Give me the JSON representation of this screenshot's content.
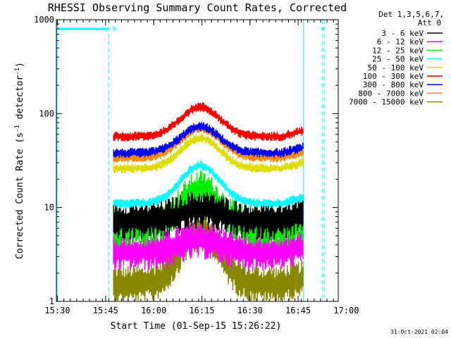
{
  "chart_data": {
    "type": "line",
    "title": "RHESSI Observing Summary Count Rates, Corrected",
    "xlabel": "Start Time (01-Sep-15 15:26:22)",
    "ylabel_main": "Corrected Count Rate (s",
    "ylabel_sup1": "-1",
    "ylabel_mid": " detector",
    "ylabel_sup2": "-1",
    "ylabel_end": ")",
    "y_scale": "log",
    "ylim": [
      1,
      1000
    ],
    "xlim_minutes": [
      15.17,
      103.0
    ],
    "x_ticks": [
      {
        "label": "15:30",
        "minute": 15.5
      },
      {
        "label": "15:45",
        "minute": 30.5
      },
      {
        "label": "16:00",
        "minute": 45.5
      },
      {
        "label": "16:15",
        "minute": 60.5
      },
      {
        "label": "16:30",
        "minute": 75.5
      },
      {
        "label": "16:45",
        "minute": 90.5
      },
      {
        "label": "17:00",
        "minute": 105.5
      }
    ],
    "y_ticks": [
      {
        "label": "1",
        "value": 1
      },
      {
        "label": "10",
        "value": 10
      },
      {
        "label": "100",
        "value": 100
      },
      {
        "label": "1000",
        "value": 1000
      }
    ],
    "legend_header": [
      "Det 1,3,5,6,7,",
      "Att 0"
    ],
    "legend_placement": "right",
    "night_marker": "N",
    "data_start_minute": 33,
    "data_end_minute": 92,
    "peak_minute": 60,
    "series": [
      {
        "name": "3 - 6 keV",
        "color": "#000000",
        "base": 7.3,
        "peak": 9.5
      },
      {
        "name": "6 - 12 keV",
        "color": "#ff00ff",
        "base": 3.4,
        "peak": 4.5
      },
      {
        "name": "12 - 25 keV",
        "color": "#00ee00",
        "base": 6.0,
        "peak": 15.5
      },
      {
        "name": "25 - 50 keV",
        "color": "#00ffff",
        "base": 11.0,
        "peak": 28.0
      },
      {
        "name": "50 - 100 keV",
        "color": "#dddd00",
        "base": 26.0,
        "peak": 55.0
      },
      {
        "name": "100 - 300 keV",
        "color": "#ff0000",
        "base": 57.0,
        "peak": 118.0
      },
      {
        "name": "300 - 800 keV",
        "color": "#0000ff",
        "base": 38.0,
        "peak": 73.0
      },
      {
        "name": "800 - 7000 keV",
        "color": "#ff8800",
        "base": 34.0,
        "peak": 70.0
      },
      {
        "name": "7000 - 15000 keV",
        "color": "#888800",
        "base": 1.5,
        "peak": 6.0
      }
    ],
    "status_color": "#00ffff"
  },
  "timestamp": "31-Oct-2021 02:04"
}
